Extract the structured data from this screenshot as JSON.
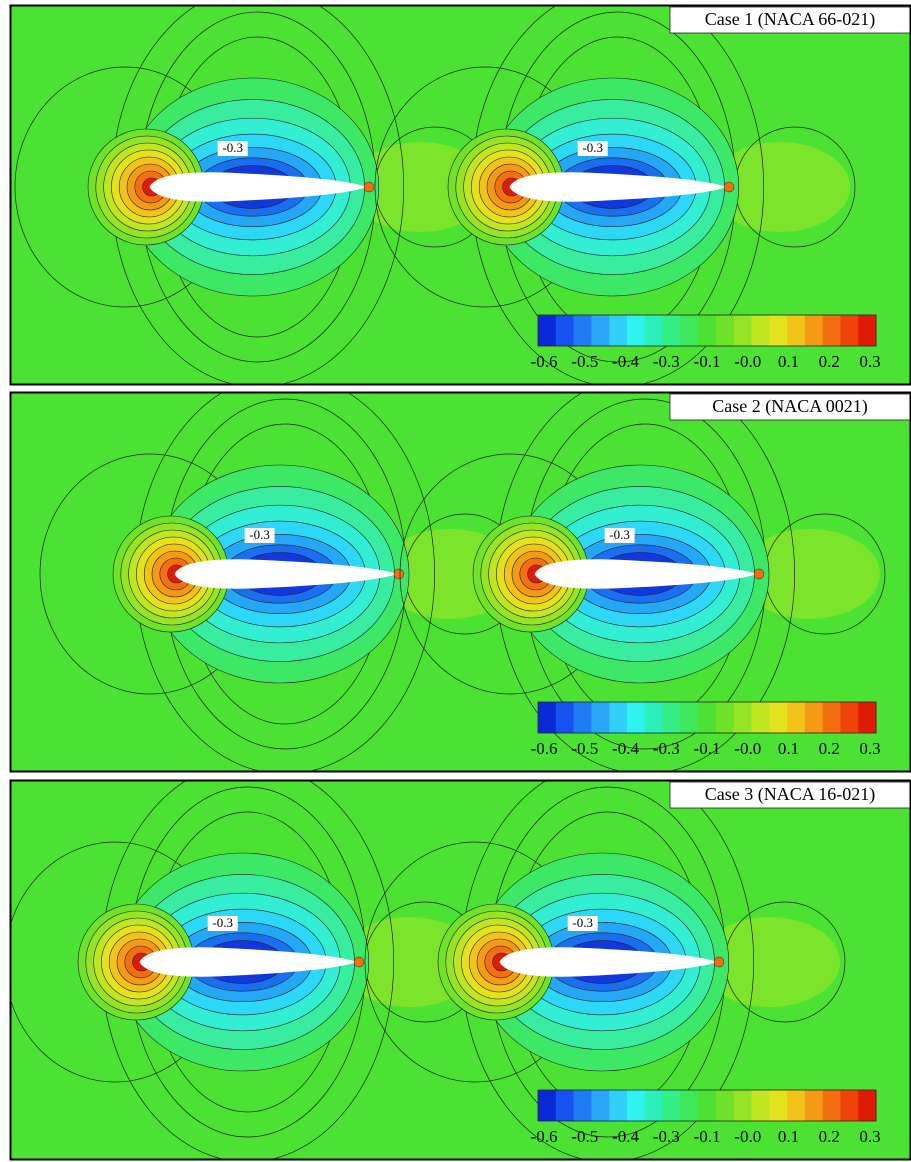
{
  "panels": [
    {
      "title": "Case 1 (NACA 66-021)",
      "contour_labels": [
        "-0.3",
        "-0.3"
      ],
      "colorbar_labels": [
        "-0.6",
        "-0.5",
        "-0.4",
        "-0.3",
        "-0.1",
        "-0.0",
        "0.1",
        "0.2",
        "0.3"
      ]
    },
    {
      "title": "Case 2 (NACA 0021)",
      "contour_labels": [
        "-0.3",
        "-0.3"
      ],
      "colorbar_labels": [
        "-0.6",
        "-0.5",
        "-0.4",
        "-0.3",
        "-0.1",
        "-0.0",
        "0.1",
        "0.2",
        "0.3"
      ]
    },
    {
      "title": "Case 3 (NACA 16-021)",
      "contour_labels": [
        "-0.3",
        "-0.3"
      ],
      "colorbar_labels": [
        "-0.6",
        "-0.5",
        "-0.4",
        "-0.3",
        "-0.1",
        "-0.0",
        "0.1",
        "0.2",
        "0.3"
      ]
    }
  ]
}
